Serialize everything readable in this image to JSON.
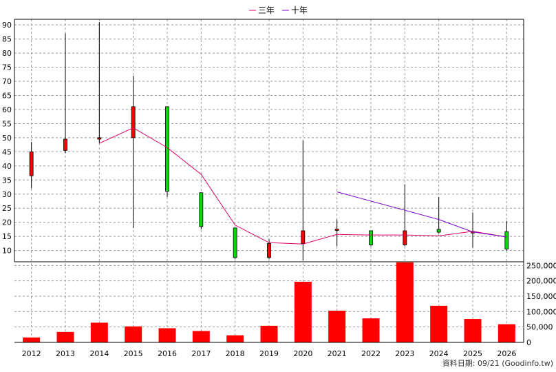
{
  "chart_data": [
    {
      "type": "candlestick",
      "legend": [
        {
          "name": "三年",
          "color": "#dd0066"
        },
        {
          "name": "十年",
          "color": "#7700cc"
        }
      ],
      "x": [
        "2012",
        "2013",
        "2014",
        "2015",
        "2016",
        "2017",
        "2018",
        "2019",
        "2020",
        "2021",
        "2022",
        "2023",
        "2024",
        "2025",
        "2026"
      ],
      "yticks": [
        10,
        15,
        20,
        25,
        30,
        35,
        40,
        45,
        50,
        55,
        60,
        65,
        70,
        75,
        80,
        85,
        90
      ],
      "ylim": [
        6,
        92
      ],
      "grid": true,
      "candles": [
        {
          "x": "2012",
          "open": 36.5,
          "close": 45,
          "high": 48.5,
          "low": 32,
          "color": "#ff0000"
        },
        {
          "x": "2013",
          "open": 45.5,
          "close": 49.5,
          "high": 87,
          "low": 44.5,
          "color": "#ff0000"
        },
        {
          "x": "2014",
          "open": 49.5,
          "close": 50,
          "high": 91,
          "low": 48,
          "color": "#ff0000"
        },
        {
          "x": "2015",
          "open": 50,
          "close": 61,
          "high": 72,
          "low": 18,
          "color": "#ff0000"
        },
        {
          "x": "2016",
          "open": 61,
          "close": 31,
          "high": 61,
          "low": 29,
          "color": "#00dd00"
        },
        {
          "x": "2017",
          "open": 30.5,
          "close": 18.5,
          "high": 30.5,
          "low": 17.5,
          "color": "#00dd00"
        },
        {
          "x": "2018",
          "open": 18,
          "close": 7.5,
          "high": 18,
          "low": 7,
          "color": "#00dd00"
        },
        {
          "x": "2019",
          "open": 7.5,
          "close": 12.5,
          "high": 14,
          "low": 7,
          "color": "#ff0000"
        },
        {
          "x": "2020",
          "open": 12.5,
          "close": 17,
          "high": 49,
          "low": 6.5,
          "color": "#ff0000"
        },
        {
          "x": "2021",
          "open": 17.3,
          "close": 17.6,
          "high": 21,
          "low": 11.5,
          "color": "#ff0000"
        },
        {
          "x": "2022",
          "open": 17,
          "close": 12,
          "high": 17,
          "low": 11.5,
          "color": "#00dd00"
        },
        {
          "x": "2023",
          "open": 12,
          "close": 17,
          "high": 33.5,
          "low": 11.5,
          "color": "#ff0000"
        },
        {
          "x": "2024",
          "open": 17.5,
          "close": 16.5,
          "high": 29,
          "low": 16,
          "color": "#00dd00"
        },
        {
          "x": "2025",
          "open": 16.5,
          "close": 16.7,
          "high": 23.5,
          "low": 11,
          "color": "#ff0000"
        },
        {
          "x": "2026",
          "open": 16.7,
          "close": 10.5,
          "high": 20.5,
          "low": 10,
          "color": "#00dd00"
        }
      ],
      "series": [
        {
          "name": "三年",
          "color": "#dd0066",
          "points": [
            [
              "2014",
              48
            ],
            [
              "2015",
              53.5
            ],
            [
              "2016",
              46.5
            ],
            [
              "2017",
              37
            ],
            [
              "2018",
              19
            ],
            [
              "2019",
              12.8
            ],
            [
              "2020",
              12.3
            ],
            [
              "2021",
              15.7
            ],
            [
              "2022",
              15.5
            ],
            [
              "2023",
              15.5
            ],
            [
              "2024",
              15.2
            ],
            [
              "2025",
              16.8
            ],
            [
              "2026",
              14.8
            ]
          ]
        },
        {
          "name": "十年",
          "color": "#7700cc",
          "points": [
            [
              "2021",
              30.8
            ],
            [
              "2024",
              21
            ],
            [
              "2025",
              16.6
            ],
            [
              "2026",
              14.8
            ]
          ]
        }
      ]
    },
    {
      "type": "bar",
      "x": [
        "2012",
        "2013",
        "2014",
        "2015",
        "2016",
        "2017",
        "2018",
        "2019",
        "2020",
        "2021",
        "2022",
        "2023",
        "2024",
        "2025",
        "2026"
      ],
      "values": [
        16000,
        34000,
        64000,
        52000,
        46000,
        37000,
        23000,
        54000,
        197000,
        103000,
        78000,
        260000,
        119000,
        76000,
        59000
      ],
      "yticks": [
        0,
        50000,
        100000,
        150000,
        200000,
        250000
      ],
      "ytick_labels": [
        "0",
        "50,000",
        "100,000",
        "150,000",
        "200,000",
        "250,000"
      ],
      "ylim": [
        0,
        262000
      ],
      "color": "#ff0000",
      "grid": true
    }
  ],
  "footer": "資料日期: 09/21  (Goodinfo.tw)"
}
